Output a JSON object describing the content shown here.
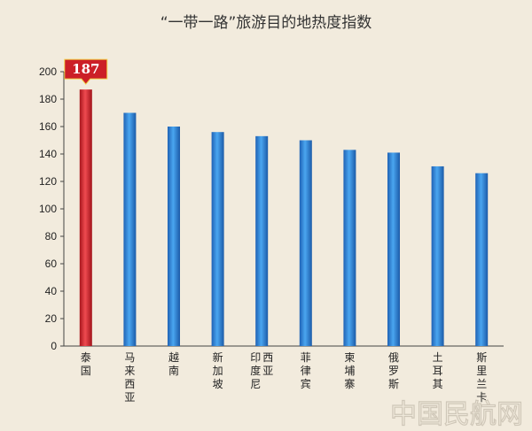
{
  "chart_data": {
    "type": "bar",
    "title": "“一带一路”旅游目的地热度指数",
    "xlabel": "",
    "ylabel": "",
    "ylim": [
      0,
      200
    ],
    "yticks": [
      0,
      20,
      40,
      60,
      80,
      100,
      120,
      140,
      160,
      180,
      200
    ],
    "categories": [
      "泰国",
      "马来西亚",
      "越南",
      "新加坡",
      "印度尼西亚",
      "菲律宾",
      "柬埔寨",
      "俄罗斯",
      "土耳其",
      "斯里兰卡"
    ],
    "category_lines": [
      [
        "泰国"
      ],
      [
        "马来西亚"
      ],
      [
        "越南"
      ],
      [
        "新加坡"
      ],
      [
        "印度尼",
        "西亚"
      ],
      [
        "菲律宾"
      ],
      [
        "柬埔寨"
      ],
      [
        "俄罗斯"
      ],
      [
        "土耳其"
      ],
      [
        "斯里兰卡"
      ]
    ],
    "values": [
      187,
      170,
      160,
      156,
      153,
      150,
      143,
      141,
      131,
      126
    ],
    "highlight_index": 0,
    "highlight_label": "187",
    "grid": false,
    "colors": {
      "bar": "#2e7fd6",
      "highlight": "#d8262e",
      "badge": "#cc1f27"
    }
  },
  "watermark": "中国民航网"
}
